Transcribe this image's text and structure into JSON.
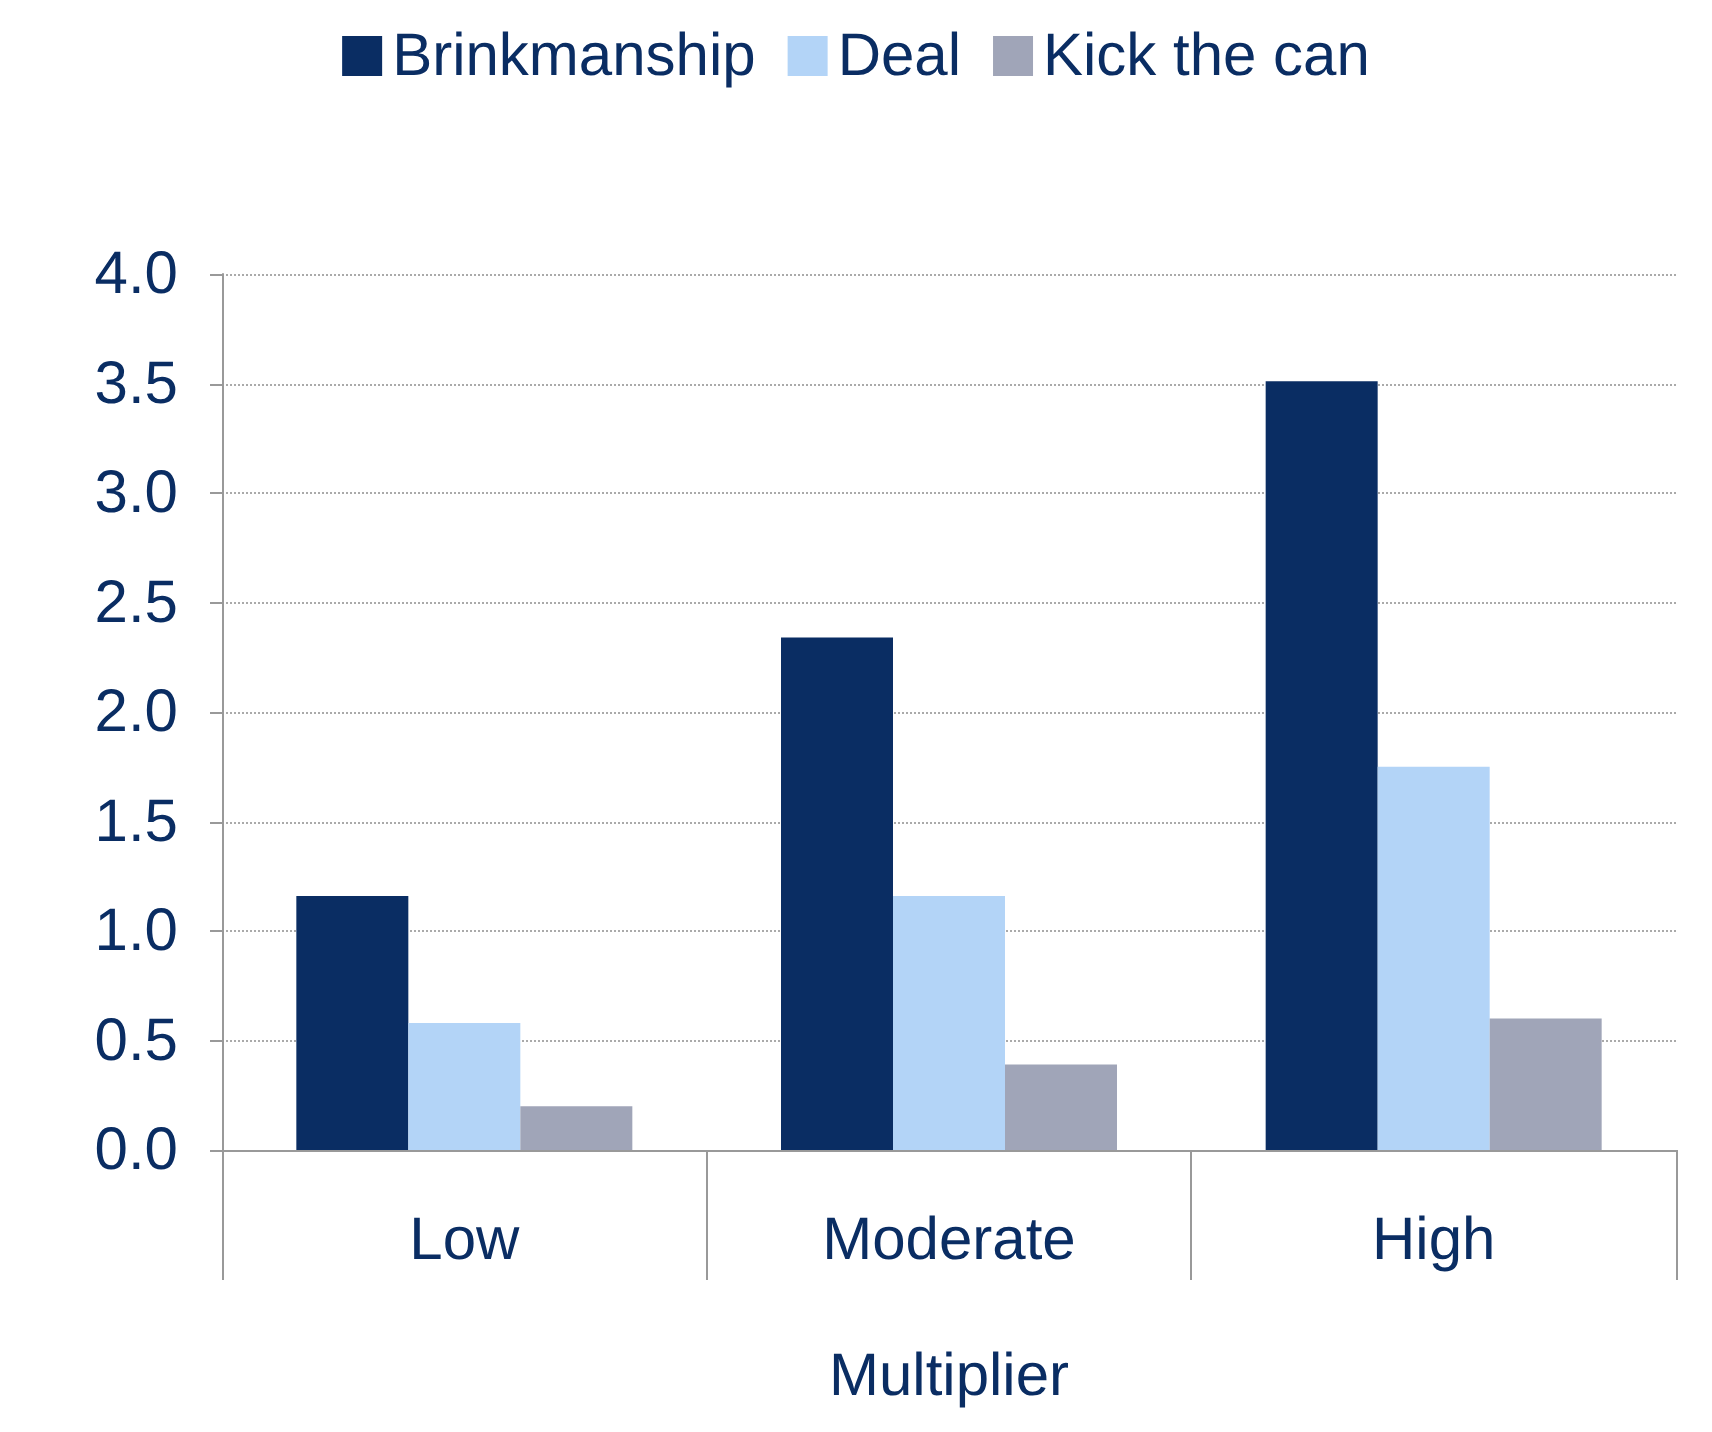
{
  "chart_data": {
    "type": "bar",
    "categories": [
      "Low",
      "Moderate",
      "High"
    ],
    "xlabel": "Multiplier",
    "series": [
      {
        "name": "Brinkmanship",
        "color": "#0a2d63",
        "values": [
          1.16,
          2.34,
          3.51
        ]
      },
      {
        "name": "Deal",
        "color": "#b3d4f7",
        "values": [
          0.58,
          1.16,
          1.75
        ]
      },
      {
        "name": "Kick the can",
        "color": "#a0a5b8",
        "values": [
          0.2,
          0.39,
          0.6
        ]
      }
    ],
    "ylim": [
      0,
      4
    ],
    "yticks": [
      {
        "value": 0,
        "label": "0.0"
      },
      0.5,
      {
        "value": 1,
        "label": "1.0"
      },
      1.5,
      {
        "value": 2,
        "label": "2.0"
      },
      2.5,
      {
        "value": 3,
        "label": "3.0"
      },
      3.5,
      {
        "value": 4,
        "label": "4.0"
      }
    ],
    "grid": "y",
    "legend": "top"
  }
}
